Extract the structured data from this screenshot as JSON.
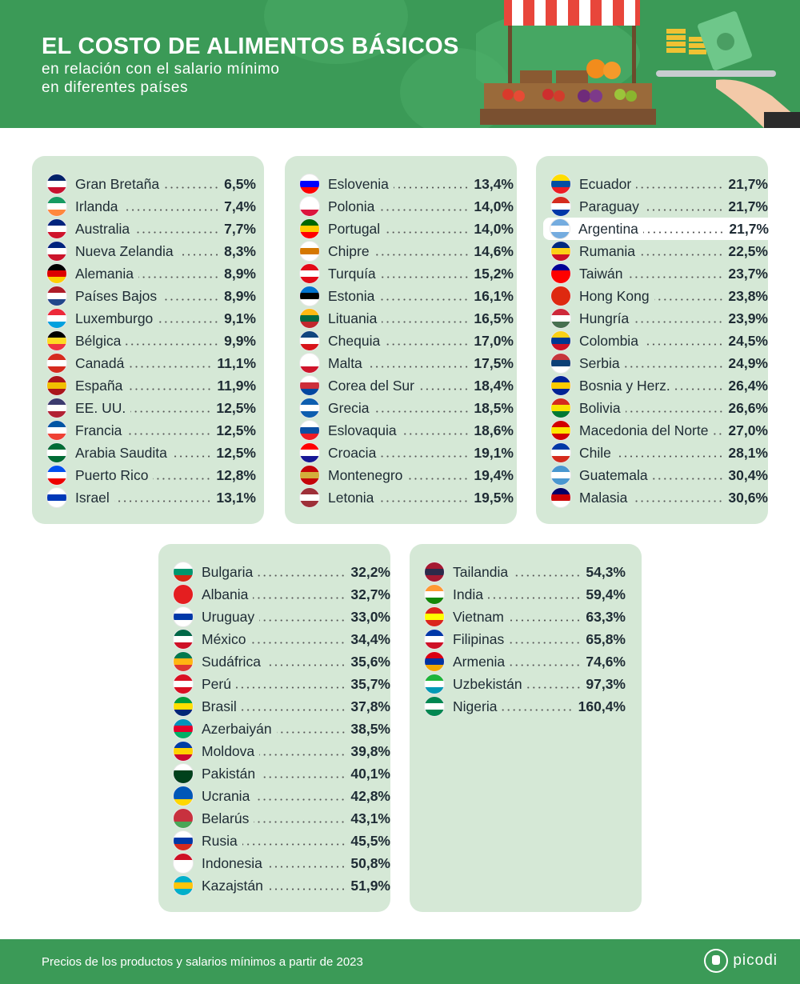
{
  "header": {
    "title": "EL COSTO DE ALIMENTOS BÁSICOS",
    "subtitle_line1": "en relación con el salario mínimo",
    "subtitle_line2": "en diferentes países"
  },
  "columns": [
    [
      {
        "name": "Gran Bretaña",
        "value": "6,5%",
        "flag": [
          "#012169",
          "#ffffff",
          "#c8102e"
        ]
      },
      {
        "name": "Irlanda",
        "value": "7,4%",
        "flag": [
          "#169b62",
          "#ffffff",
          "#ff883e"
        ]
      },
      {
        "name": "Australia",
        "value": "7,7%",
        "flag": [
          "#00247d",
          "#ffffff",
          "#cf142b"
        ]
      },
      {
        "name": "Nueva Zelandia",
        "value": "8,3%",
        "flag": [
          "#00247d",
          "#ffffff",
          "#cc142b"
        ]
      },
      {
        "name": "Alemania",
        "value": "8,9%",
        "flag": [
          "#000000",
          "#dd0000",
          "#ffce00"
        ]
      },
      {
        "name": "Países Bajos",
        "value": "8,9%",
        "flag": [
          "#ae1c28",
          "#ffffff",
          "#21468b"
        ]
      },
      {
        "name": "Luxemburgo",
        "value": "9,1%",
        "flag": [
          "#ed2939",
          "#ffffff",
          "#00a1de"
        ]
      },
      {
        "name": "Bélgica",
        "value": "9,9%",
        "flag": [
          "#000000",
          "#fdda24",
          "#ef3340"
        ]
      },
      {
        "name": "Canadá",
        "value": "11,1%",
        "flag": [
          "#d52b1e",
          "#ffffff",
          "#d52b1e"
        ]
      },
      {
        "name": "España",
        "value": "11,9%",
        "flag": [
          "#aa151b",
          "#f1bf00",
          "#aa151b"
        ]
      },
      {
        "name": "EE. UU.",
        "value": "12,5%",
        "flag": [
          "#3c3b6e",
          "#ffffff",
          "#b22234"
        ]
      },
      {
        "name": "Francia",
        "value": "12,5%",
        "flag": [
          "#0055a4",
          "#ffffff",
          "#ef4135"
        ]
      },
      {
        "name": "Arabia Saudita",
        "value": "12,5%",
        "flag": [
          "#006c35",
          "#ffffff",
          "#006c35"
        ]
      },
      {
        "name": "Puerto Rico",
        "value": "12,8%",
        "flag": [
          "#0050f0",
          "#ffffff",
          "#ed0000"
        ]
      },
      {
        "name": "Israel",
        "value": "13,1%",
        "flag": [
          "#ffffff",
          "#0038b8",
          "#ffffff"
        ]
      }
    ],
    [
      {
        "name": "Eslovenia",
        "value": "13,4%",
        "flag": [
          "#ffffff",
          "#0000ff",
          "#ff0000"
        ]
      },
      {
        "name": "Polonia",
        "value": "14,0%",
        "flag": [
          "#ffffff",
          "#ffffff",
          "#dc143c"
        ]
      },
      {
        "name": "Portugal",
        "value": "14,0%",
        "flag": [
          "#006600",
          "#ffcc00",
          "#ff0000"
        ]
      },
      {
        "name": "Chipre",
        "value": "14,6%",
        "flag": [
          "#ffffff",
          "#d57800",
          "#ffffff"
        ]
      },
      {
        "name": "Turquía",
        "value": "15,2%",
        "flag": [
          "#e30a17",
          "#ffffff",
          "#e30a17"
        ]
      },
      {
        "name": "Estonia",
        "value": "16,1%",
        "flag": [
          "#0072ce",
          "#000000",
          "#ffffff"
        ]
      },
      {
        "name": "Lituania",
        "value": "16,5%",
        "flag": [
          "#fdb913",
          "#006a44",
          "#c1272d"
        ]
      },
      {
        "name": "Chequia",
        "value": "17,0%",
        "flag": [
          "#11457e",
          "#ffffff",
          "#d7141a"
        ]
      },
      {
        "name": "Malta",
        "value": "17,5%",
        "flag": [
          "#ffffff",
          "#ffffff",
          "#cf142b"
        ]
      },
      {
        "name": "Corea del Sur",
        "value": "18,4%",
        "flag": [
          "#ffffff",
          "#cd2e3a",
          "#0047a0"
        ]
      },
      {
        "name": "Grecia",
        "value": "18,5%",
        "flag": [
          "#0d5eaf",
          "#ffffff",
          "#0d5eaf"
        ]
      },
      {
        "name": "Eslovaquia",
        "value": "18,6%",
        "flag": [
          "#ffffff",
          "#0b4ea2",
          "#ee1c25"
        ]
      },
      {
        "name": "Croacia",
        "value": "19,1%",
        "flag": [
          "#ff0000",
          "#ffffff",
          "#171796"
        ]
      },
      {
        "name": "Montenegro",
        "value": "19,4%",
        "flag": [
          "#c40308",
          "#d3ae3b",
          "#c40308"
        ]
      },
      {
        "name": "Letonia",
        "value": "19,5%",
        "flag": [
          "#9e3039",
          "#ffffff",
          "#9e3039"
        ]
      }
    ],
    [
      {
        "name": "Ecuador",
        "value": "21,7%",
        "flag": [
          "#ffdd00",
          "#034ea2",
          "#ed1c24"
        ]
      },
      {
        "name": "Paraguay",
        "value": "21,7%",
        "flag": [
          "#d52b1e",
          "#ffffff",
          "#0038a8"
        ]
      },
      {
        "name": "Argentina",
        "value": "21,7%",
        "flag": [
          "#74acdf",
          "#ffffff",
          "#74acdf"
        ],
        "highlight": true
      },
      {
        "name": "Rumania",
        "value": "22,5%",
        "flag": [
          "#002b7f",
          "#fcd116",
          "#ce1126"
        ]
      },
      {
        "name": "Taiwán",
        "value": "23,7%",
        "flag": [
          "#000095",
          "#fe0000",
          "#fe0000"
        ]
      },
      {
        "name": "Hong Kong",
        "value": "23,8%",
        "flag": [
          "#de2910",
          "#de2910",
          "#de2910"
        ]
      },
      {
        "name": "Hungría",
        "value": "23,9%",
        "flag": [
          "#ce2939",
          "#ffffff",
          "#477050"
        ]
      },
      {
        "name": "Colombia",
        "value": "24,5%",
        "flag": [
          "#fcd116",
          "#003893",
          "#ce1126"
        ]
      },
      {
        "name": "Serbia",
        "value": "24,9%",
        "flag": [
          "#c6363c",
          "#0c4076",
          "#ffffff"
        ]
      },
      {
        "name": "Bosnia y Herz.",
        "value": "26,4%",
        "flag": [
          "#002395",
          "#fecb00",
          "#002395"
        ]
      },
      {
        "name": "Bolivia",
        "value": "26,6%",
        "flag": [
          "#d52b1e",
          "#f9e300",
          "#007934"
        ]
      },
      {
        "name": "Macedonia del Norte",
        "value": "27,0%",
        "flag": [
          "#d20000",
          "#ffe600",
          "#d20000"
        ]
      },
      {
        "name": "Chile",
        "value": "28,1%",
        "flag": [
          "#0039a6",
          "#ffffff",
          "#d52b1e"
        ]
      },
      {
        "name": "Guatemala",
        "value": "30,4%",
        "flag": [
          "#4997d0",
          "#ffffff",
          "#4997d0"
        ]
      },
      {
        "name": "Malasia",
        "value": "30,6%",
        "flag": [
          "#010066",
          "#cc0001",
          "#ffffff"
        ]
      }
    ],
    [
      {
        "name": "Bulgaria",
        "value": "32,2%",
        "flag": [
          "#ffffff",
          "#00966e",
          "#d62612"
        ]
      },
      {
        "name": "Albania",
        "value": "32,7%",
        "flag": [
          "#e41e20",
          "#e41e20",
          "#e41e20"
        ]
      },
      {
        "name": "Uruguay",
        "value": "33,0%",
        "flag": [
          "#ffffff",
          "#0038a8",
          "#ffffff"
        ]
      },
      {
        "name": "México",
        "value": "34,4%",
        "flag": [
          "#006847",
          "#ffffff",
          "#ce1126"
        ]
      },
      {
        "name": "Sudáfrica",
        "value": "35,6%",
        "flag": [
          "#007a4d",
          "#ffb612",
          "#de3831"
        ]
      },
      {
        "name": "Perú",
        "value": "35,7%",
        "flag": [
          "#d91023",
          "#ffffff",
          "#d91023"
        ]
      },
      {
        "name": "Brasil",
        "value": "37,8%",
        "flag": [
          "#009c3b",
          "#ffdf00",
          "#002776"
        ]
      },
      {
        "name": "Azerbaiyán",
        "value": "38,5%",
        "flag": [
          "#0092bc",
          "#e4002b",
          "#00af66"
        ]
      },
      {
        "name": "Moldova",
        "value": "39,8%",
        "flag": [
          "#003da5",
          "#ffd200",
          "#cc092f"
        ]
      },
      {
        "name": "Pakistán",
        "value": "40,1%",
        "flag": [
          "#ffffff",
          "#01411c",
          "#01411c"
        ]
      },
      {
        "name": "Ucrania",
        "value": "42,8%",
        "flag": [
          "#0057b7",
          "#0057b7",
          "#ffd700"
        ]
      },
      {
        "name": "Belarús",
        "value": "43,1%",
        "flag": [
          "#c8313e",
          "#c8313e",
          "#4aa657"
        ]
      },
      {
        "name": "Rusia",
        "value": "45,5%",
        "flag": [
          "#ffffff",
          "#0039a6",
          "#d52b1e"
        ]
      },
      {
        "name": "Indonesia",
        "value": "50,8%",
        "flag": [
          "#ce1126",
          "#ffffff",
          "#ffffff"
        ]
      },
      {
        "name": "Kazajstán",
        "value": "51,9%",
        "flag": [
          "#00afca",
          "#fec50c",
          "#00afca"
        ]
      }
    ],
    [
      {
        "name": "Tailandia",
        "value": "54,3%",
        "flag": [
          "#a51931",
          "#2d2a4a",
          "#a51931"
        ]
      },
      {
        "name": "India",
        "value": "59,4%",
        "flag": [
          "#ff9933",
          "#ffffff",
          "#138808"
        ]
      },
      {
        "name": "Vietnam",
        "value": "63,3%",
        "flag": [
          "#da251d",
          "#ffff00",
          "#da251d"
        ]
      },
      {
        "name": "Filipinas",
        "value": "65,8%",
        "flag": [
          "#0038a8",
          "#ffffff",
          "#ce1126"
        ]
      },
      {
        "name": "Armenia",
        "value": "74,6%",
        "flag": [
          "#d90012",
          "#0033a0",
          "#f2a800"
        ]
      },
      {
        "name": "Uzbekistán",
        "value": "97,3%",
        "flag": [
          "#1eb53a",
          "#ffffff",
          "#0099b5"
        ]
      },
      {
        "name": "Nigeria",
        "value": "160,4%",
        "flag": [
          "#008751",
          "#ffffff",
          "#008751"
        ]
      }
    ]
  ],
  "footer": {
    "note": "Precios de los productos y salarios mínimos a partir de 2023",
    "brand": "picodi"
  }
}
